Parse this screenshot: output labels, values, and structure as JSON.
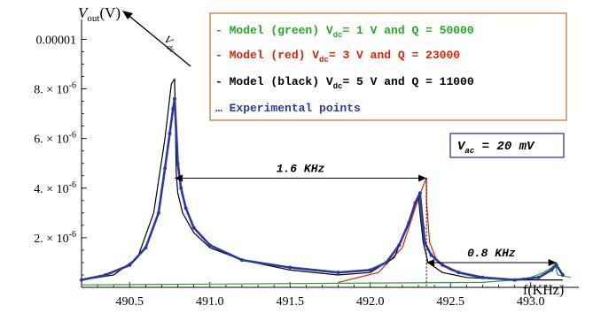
{
  "chart_data": {
    "type": "line",
    "title": "",
    "ylabel_main": "V",
    "ylabel_sub": "out",
    "ylabel_unit": "(V)",
    "xlabel": "f(KHz)",
    "xlim": [
      490.2,
      493.3
    ],
    "ylim": [
      0,
      1.08e-05
    ],
    "x_ticks": [
      {
        "value": 490.5,
        "label": "490.5"
      },
      {
        "value": 491.0,
        "label": "491.0"
      },
      {
        "value": 491.5,
        "label": "491.5"
      },
      {
        "value": 492.0,
        "label": "492.0"
      },
      {
        "value": 492.5,
        "label": "492.5"
      },
      {
        "value": 493.0,
        "label": "493.0"
      }
    ],
    "y_ticks": [
      {
        "value": 2e-06,
        "mant": "2.",
        "exp": "-6"
      },
      {
        "value": 4e-06,
        "mant": "4.",
        "exp": "-6"
      },
      {
        "value": 6e-06,
        "mant": "6.",
        "exp": "-6"
      },
      {
        "value": 8e-06,
        "mant": "8.",
        "exp": "-6"
      },
      {
        "value": 1e-05,
        "plain": "0.00001"
      }
    ],
    "series": [
      {
        "color": "#22aa22",
        "x": [
          490.2,
          492.7,
          492.9,
          493.0,
          493.08,
          493.13,
          493.16,
          493.16,
          493.17,
          493.25
        ],
        "y": [
          1e-07,
          2e-07,
          3e-07,
          4e-07,
          6e-07,
          8e-07,
          1e-06,
          6.5e-07,
          5e-07,
          4e-07
        ]
      },
      {
        "color": "#dd2200",
        "x": [
          491.8,
          492.05,
          492.2,
          492.28,
          492.33,
          492.35,
          492.35,
          492.37,
          492.42,
          492.5,
          492.6
        ],
        "y": [
          2e-07,
          6e-07,
          1.6e-06,
          3.2e-06,
          4.1e-06,
          4.4e-06,
          3.5e-06,
          1.8e-06,
          1e-06,
          7e-07,
          5e-07
        ]
      },
      {
        "color": "#000000",
        "x": [
          490.2,
          490.4,
          490.55,
          490.65,
          490.72,
          490.76,
          490.78,
          490.785,
          490.79,
          490.8,
          490.83,
          490.9,
          491.0,
          491.2,
          491.5,
          491.8,
          492.0,
          492.15,
          492.23,
          492.28,
          492.3,
          492.31,
          492.33,
          492.36,
          492.45,
          492.6,
          492.9,
          493.2
        ],
        "y": [
          3e-07,
          5e-07,
          1.2e-06,
          3e-06,
          6e-06,
          8.2e-06,
          8.4e-06,
          6.6e-06,
          4.6e-06,
          3.8e-06,
          3e-06,
          2.2e-06,
          1.6e-06,
          1.1e-06,
          7e-07,
          5e-07,
          6e-07,
          1.2e-06,
          2.5e-06,
          3.4e-06,
          3.7e-06,
          3e-06,
          1.8e-06,
          1e-06,
          6e-07,
          4e-07,
          3e-07,
          3e-07
        ]
      },
      {
        "color": "#2a3a9e",
        "x": [
          490.2,
          490.35,
          490.5,
          490.6,
          490.68,
          490.72,
          490.75,
          490.77,
          490.78,
          490.8,
          490.82,
          490.85,
          490.9,
          491.0,
          491.2,
          491.5,
          491.8,
          492.0,
          492.1,
          492.18,
          492.24,
          492.28,
          492.31,
          492.33,
          492.34,
          492.38,
          492.45,
          492.55,
          492.7,
          492.9,
          493.05,
          493.13,
          493.16,
          493.2
        ],
        "y": [
          3e-07,
          5e-07,
          9e-07,
          1.6e-06,
          3e-06,
          4.8e-06,
          6.2e-06,
          7.2e-06,
          7.6e-06,
          5e-06,
          4e-06,
          3.2e-06,
          2.4e-06,
          1.7e-06,
          1.1e-06,
          8e-07,
          6e-07,
          7e-07,
          1e-06,
          1.7e-06,
          2.6e-06,
          3.4e-06,
          3.8e-06,
          2.4e-06,
          1.8e-06,
          1.3e-06,
          9e-07,
          6e-07,
          4e-07,
          3e-07,
          4e-07,
          7e-07,
          9e-07,
          5e-07
        ]
      }
    ],
    "legend": {
      "placement": "top-right",
      "entries": [
        {
          "prefix": "- Model (green) V",
          "sub": "dc",
          "suffix": "= 1 V and Q = 50000",
          "color": "#22aa22"
        },
        {
          "prefix": "- Model (red)  V",
          "sub": "dc",
          "suffix": "= 3 V and Q = 23000",
          "color": "#dd2200"
        },
        {
          "prefix": "- Model (black) V",
          "sub": "dc",
          "suffix": "= 5 V and Q = 11000",
          "color": "#000000"
        },
        {
          "prefix": "… Experimental points",
          "sub": "",
          "suffix": "",
          "color": "#2a3a9e"
        }
      ]
    },
    "vac_box": {
      "main": "V",
      "sub": "ac",
      "rest": " = 20 mV"
    },
    "arrow_label": {
      "main": "V",
      "sub": "dc"
    },
    "annotations": [
      {
        "label": "1.6 KHz",
        "x1": 490.78,
        "x2": 492.35,
        "y": 4.4e-06
      },
      {
        "label": "0.8 KHz",
        "x1": 492.35,
        "x2": 493.16,
        "y": 1e-06
      }
    ]
  }
}
